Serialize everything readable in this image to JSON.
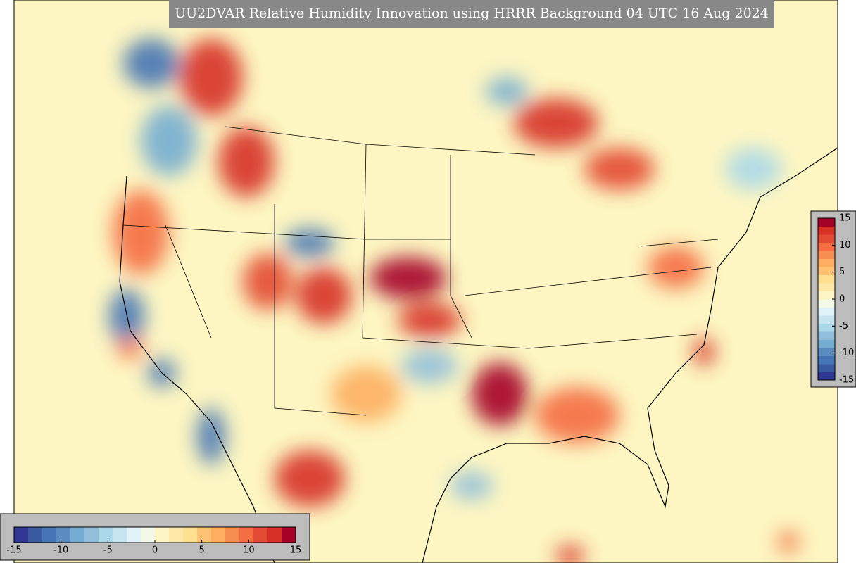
{
  "title": "UU2DVAR Relative Humidity Innovation using HRRR Background 04 UTC 16 Aug 2024",
  "colormap": [
    "#313695",
    "#3a5a9f",
    "#4575b4",
    "#5b8cc0",
    "#74add1",
    "#91bfdb",
    "#abd9e9",
    "#c6e5ef",
    "#e0f3f8",
    "#f2f9e6",
    "#fdf6c4",
    "#fee8a8",
    "#fee090",
    "#fdc274",
    "#fdae61",
    "#f88d52",
    "#f46d43",
    "#e34a33",
    "#d73027",
    "#a50026"
  ],
  "colorbars": [
    {
      "orientation": "horizontal",
      "lim": [
        -15,
        15
      ],
      "ticks": [
        -15,
        -10,
        -5,
        0,
        5,
        10,
        15
      ]
    },
    {
      "orientation": "vertical",
      "lim": [
        -15,
        15
      ],
      "ticks": [
        -15,
        -10,
        -5,
        0,
        5,
        10,
        15
      ]
    }
  ]
}
